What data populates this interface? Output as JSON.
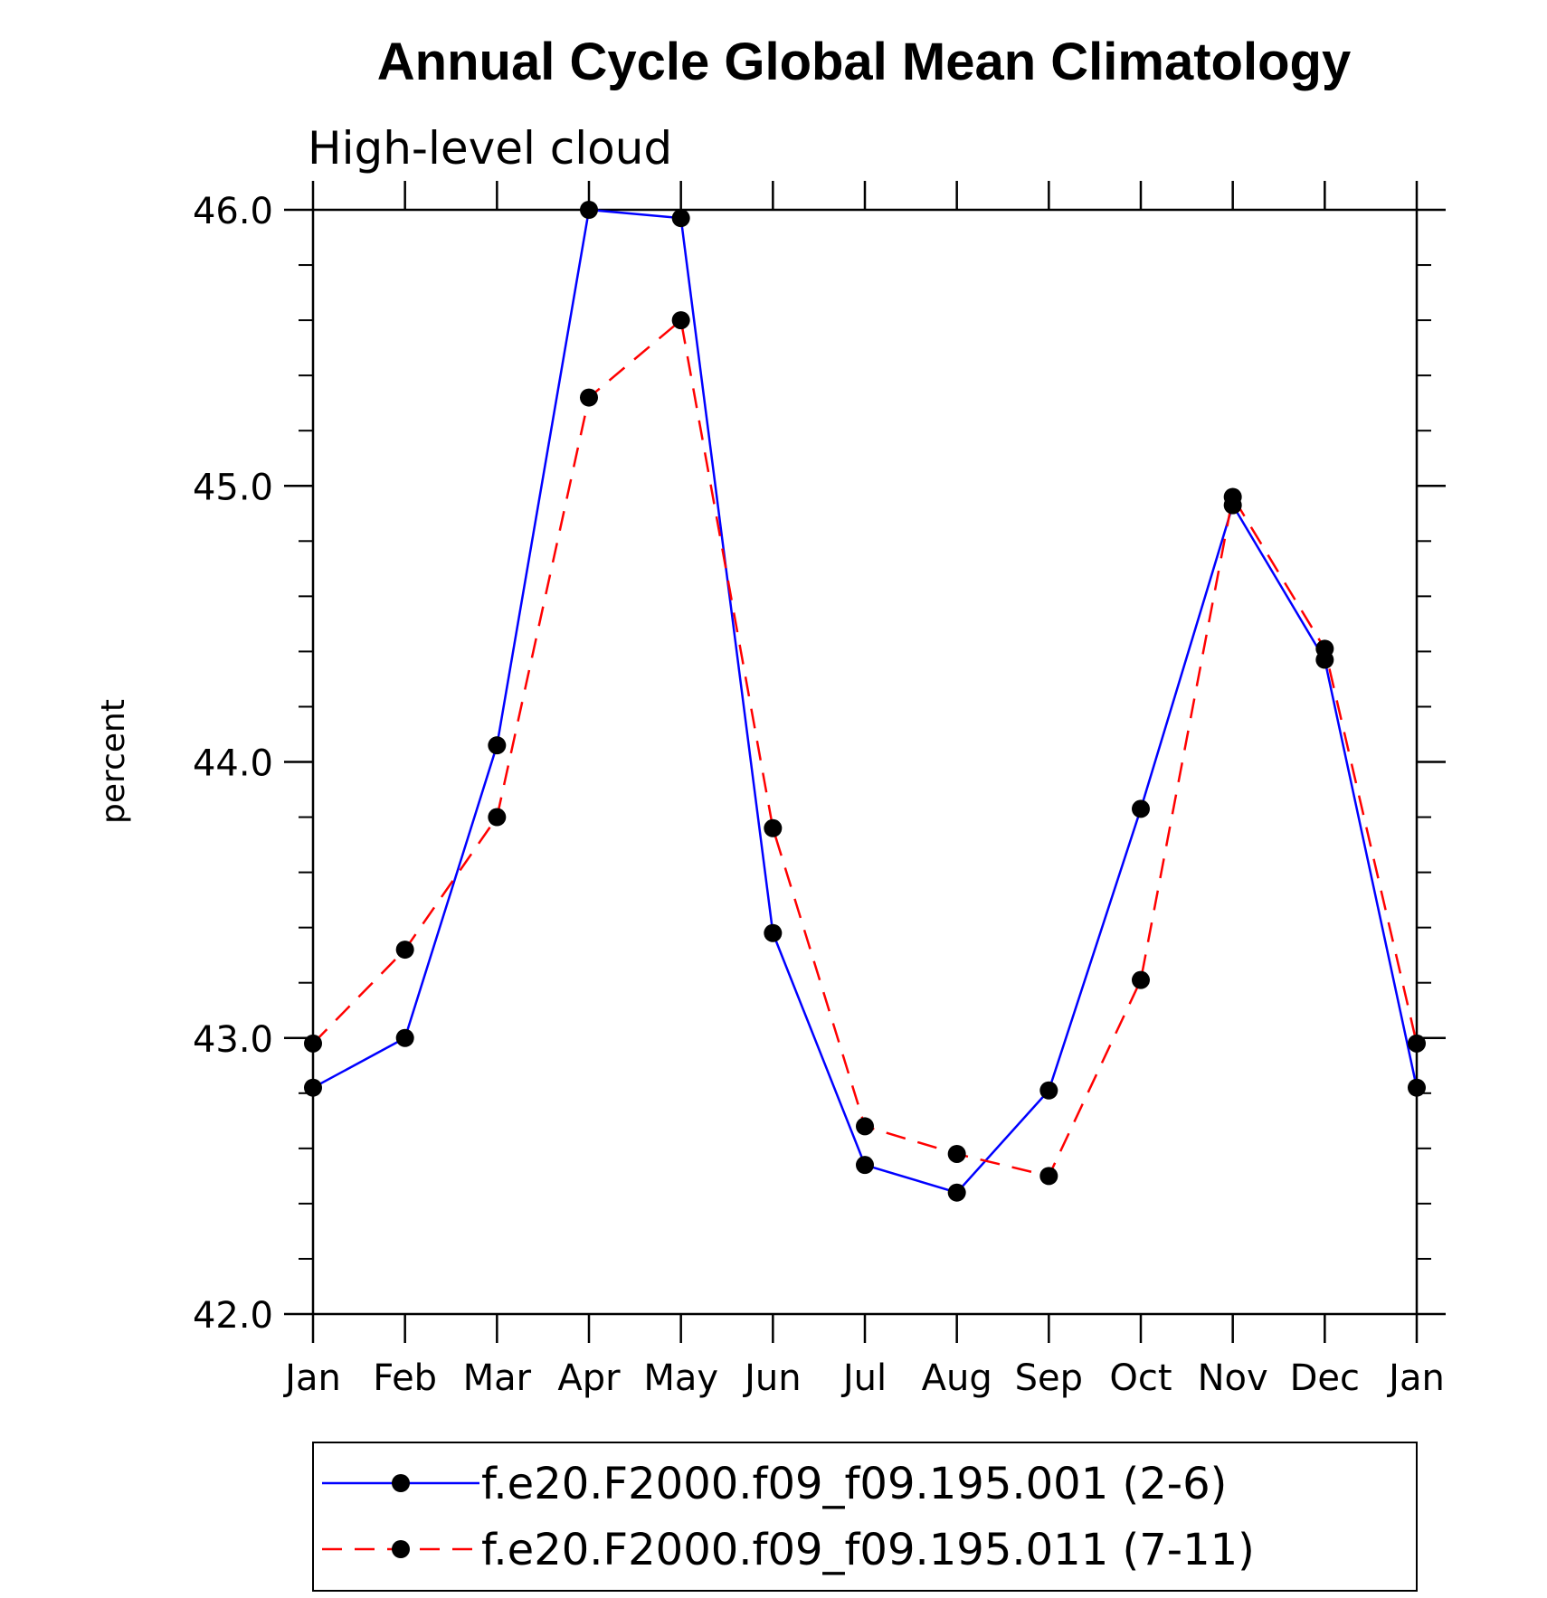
{
  "chart_data": {
    "type": "line",
    "title": "Annual Cycle Global Mean Climatology",
    "subtitle": "High-level cloud",
    "xlabel": "",
    "ylabel": "percent",
    "categories": [
      "Jan",
      "Feb",
      "Mar",
      "Apr",
      "May",
      "Jun",
      "Jul",
      "Aug",
      "Sep",
      "Oct",
      "Nov",
      "Dec",
      "Jan"
    ],
    "ylim": [
      42.0,
      46.0
    ],
    "yticks": [
      "42.0",
      "43.0",
      "44.0",
      "45.0",
      "46.0"
    ],
    "grid": false,
    "legend_position": "bottom",
    "series": [
      {
        "name": "f.e20.F2000.f09_f09.195.001 (2-6)",
        "color": "#0000ff",
        "dash": "solid",
        "marker": "circle",
        "values": [
          42.82,
          43.0,
          44.06,
          46.0,
          45.97,
          43.38,
          42.54,
          42.44,
          42.81,
          43.83,
          44.93,
          44.37,
          42.82
        ]
      },
      {
        "name": "f.e20.F2000.f09_f09.195.011 (7-11)",
        "color": "#ff0000",
        "dash": "dashed",
        "marker": "circle",
        "values": [
          42.98,
          43.32,
          43.8,
          45.32,
          45.6,
          43.76,
          42.68,
          42.58,
          42.5,
          43.21,
          44.96,
          44.41,
          42.98
        ]
      }
    ]
  }
}
